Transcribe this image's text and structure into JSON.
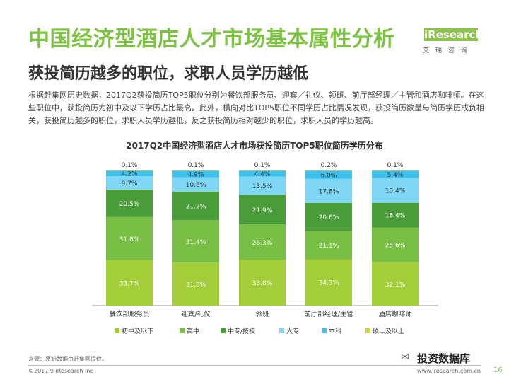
{
  "header": {
    "title": "中国经济型酒店人才市场基本属性分析",
    "subtitle": "获投简历越多的职位，求职人员学历越低",
    "description": "根据赶集网历史数据，2017Q2获投简历TOP5职位分别为餐饮部服务员、迎宾／礼仪、领班、前厅部经理／主管和酒店咖啡师。在这些职位中，获投简历为初中及以下学历占比最高。此外，横向对比TOP5职位不同学历占比情况发现，获投简历数量与简历学历成负相关，获投简历越多的职位，求职人员学历越低，反之获投简历相对越少的职位，求职人员的学历越高。",
    "logo": "iResearch",
    "logo_sub": "艾瑞咨询"
  },
  "footer": {
    "source": "来源：原始数据由赶集网提供。",
    "copyright": "©2017.9 iResearch Inc",
    "url": "www.iresearch.com.cn",
    "page": "16",
    "watermark": "投资数据库"
  },
  "chart_data": {
    "type": "bar",
    "stacked": true,
    "percent": true,
    "title": "2017Q2中国经济型酒店人才市场获投简历TOP5职位简历学历分布",
    "categories": [
      "餐饮部服务员",
      "迎宾/礼仪",
      "领班",
      "前厅部经理/主管",
      "酒店咖啡师"
    ],
    "series": [
      {
        "name": "初中及以下",
        "color": "#a4cd3a",
        "values": [
          33.7,
          31.8,
          33.8,
          34.3,
          32.1
        ]
      },
      {
        "name": "高中",
        "color": "#79bf45",
        "values": [
          31.8,
          31.4,
          26.3,
          21.1,
          25.6
        ]
      },
      {
        "name": "中专/技校",
        "color": "#4a9c3a",
        "values": [
          20.5,
          21.2,
          21.9,
          20.6,
          18.4
        ]
      },
      {
        "name": "大专",
        "color": "#7fd6f5",
        "values": [
          9.7,
          10.6,
          13.5,
          17.8,
          18.4
        ]
      },
      {
        "name": "本科",
        "color": "#3cc1ee",
        "values": [
          4.2,
          4.9,
          4.4,
          6.0,
          5.4
        ]
      },
      {
        "name": "硕士及以上",
        "color": "#c8d930",
        "values": [
          0.1,
          0.1,
          0.1,
          0.2,
          0.1
        ]
      }
    ],
    "labels": [
      [
        "33.7%",
        "31.8%",
        "20.5%",
        "9.7%",
        "4.2%",
        "0.1%"
      ],
      [
        "31.8%",
        "31.4%",
        "21.2%",
        "10.6%",
        "4.9%",
        "0.1%"
      ],
      [
        "33.8%",
        "26.3%",
        "21.9%",
        "13.5%",
        "4.4%",
        "0.1%"
      ],
      [
        "34.3%",
        "21.1%",
        "20.6%",
        "17.8%",
        "6.0%",
        "0.2%"
      ],
      [
        "32.1%",
        "25.6%",
        "18.4%",
        "18.4%",
        "5.4%",
        "0.1%"
      ]
    ],
    "legend_position": "bottom",
    "grid": false
  }
}
